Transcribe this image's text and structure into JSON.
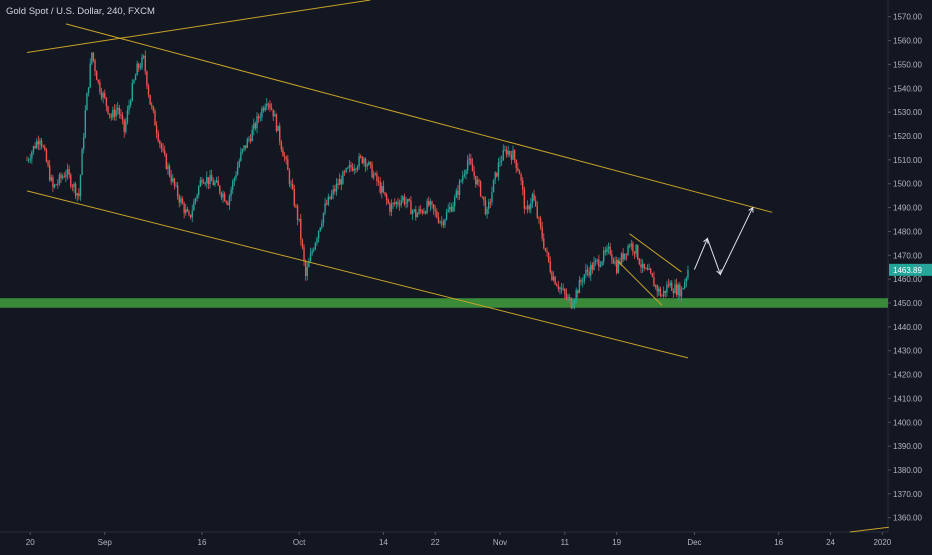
{
  "chart_data": {
    "type": "candlestick",
    "title": "Gold Spot / U.S. Dollar, 240, FXCM",
    "ylim": [
      1354,
      1577
    ],
    "x_range_days": [
      0,
      119
    ],
    "y_ticks": [
      1570,
      1560,
      1550,
      1540,
      1530,
      1520,
      1510,
      1500,
      1490,
      1480,
      1470,
      1460,
      1450,
      1440,
      1430,
      1420,
      1410,
      1400,
      1390,
      1380,
      1370,
      1360
    ],
    "y_tick_labels": [
      "1570.00",
      "1560.00",
      "1550.00",
      "1540.00",
      "1530.00",
      "1520.00",
      "1510.00",
      "1500.00",
      "1490.00",
      "1480.00",
      "1470.00",
      "1460.00",
      "1450.00",
      "1440.00",
      "1430.00",
      "1420.00",
      "1410.00",
      "1400.00",
      "1390.00",
      "1380.00",
      "1370.00",
      "1360.00"
    ],
    "x_ticks": [
      {
        "label": "20",
        "day": 0.5
      },
      {
        "label": "Sep",
        "day": 12
      },
      {
        "label": "16",
        "day": 27
      },
      {
        "label": "Oct",
        "day": 42
      },
      {
        "label": "14",
        "day": 55
      },
      {
        "label": "22",
        "day": 63
      },
      {
        "label": "Nov",
        "day": 73
      },
      {
        "label": "11",
        "day": 83
      },
      {
        "label": "19",
        "day": 91
      },
      {
        "label": "Dec",
        "day": 103
      },
      {
        "label": "16",
        "day": 116
      },
      {
        "label": "24",
        "day": 124
      },
      {
        "label": "2020",
        "day": 132
      }
    ],
    "price_label": "1463.89",
    "last_price": 1463.89,
    "support_zone": {
      "low": 1448,
      "high": 1452,
      "color": "#3a8a3a"
    },
    "colors": {
      "up": "#26a69a",
      "down": "#ef5350",
      "background": "#131722",
      "trendline": "#c9a227",
      "projection": "#e0e3eb",
      "price_label_bg": "#26a69a"
    },
    "trendlines": [
      {
        "name": "upper-channel",
        "points": [
          [
            6,
            1567
          ],
          [
            115,
            1488
          ]
        ]
      },
      {
        "name": "lower-channel",
        "points": [
          [
            0,
            1497
          ],
          [
            102,
            1427
          ]
        ]
      },
      {
        "name": "wedge-upper",
        "points": [
          [
            93,
            1479
          ],
          [
            101,
            1463
          ]
        ]
      },
      {
        "name": "wedge-lower",
        "points": [
          [
            91,
            1468
          ],
          [
            98,
            1449
          ]
        ]
      },
      {
        "name": "outer-upper-left",
        "points": [
          [
            0,
            1555
          ],
          [
            53,
            1577
          ]
        ]
      },
      {
        "name": "outer-lower-right",
        "points": [
          [
            127,
            1354
          ],
          [
            133,
            1356
          ]
        ]
      }
    ],
    "projection": [
      [
        103,
        1464
      ],
      [
        105,
        1477
      ],
      [
        107,
        1462
      ],
      [
        112,
        1490
      ]
    ],
    "ohlc_keypoints": [
      [
        0,
        1510
      ],
      [
        2,
        1520
      ],
      [
        4,
        1498
      ],
      [
        6,
        1505
      ],
      [
        8,
        1495
      ],
      [
        9,
        1530
      ],
      [
        10,
        1555
      ],
      [
        11,
        1542
      ],
      [
        12,
        1535
      ],
      [
        13,
        1528
      ],
      [
        14,
        1532
      ],
      [
        15,
        1522
      ],
      [
        16,
        1537
      ],
      [
        17,
        1548
      ],
      [
        18,
        1552
      ],
      [
        19,
        1534
      ],
      [
        21,
        1512
      ],
      [
        23,
        1497
      ],
      [
        25,
        1485
      ],
      [
        27,
        1503
      ],
      [
        29,
        1500
      ],
      [
        31,
        1493
      ],
      [
        33,
        1512
      ],
      [
        35,
        1523
      ],
      [
        37,
        1536
      ],
      [
        38,
        1530
      ],
      [
        40,
        1508
      ],
      [
        42,
        1483
      ],
      [
        43,
        1461
      ],
      [
        44,
        1472
      ],
      [
        46,
        1490
      ],
      [
        48,
        1500
      ],
      [
        50,
        1507
      ],
      [
        52,
        1511
      ],
      [
        54,
        1501
      ],
      [
        56,
        1490
      ],
      [
        58,
        1494
      ],
      [
        60,
        1487
      ],
      [
        62,
        1491
      ],
      [
        64,
        1484
      ],
      [
        66,
        1493
      ],
      [
        68,
        1510
      ],
      [
        70,
        1497
      ],
      [
        71,
        1487
      ],
      [
        72,
        1500
      ],
      [
        73,
        1510
      ],
      [
        74,
        1514
      ],
      [
        75,
        1512
      ],
      [
        76,
        1505
      ],
      [
        77,
        1487
      ],
      [
        78,
        1495
      ],
      [
        80,
        1472
      ],
      [
        81,
        1462
      ],
      [
        83,
        1453
      ],
      [
        84,
        1450
      ],
      [
        86,
        1462
      ],
      [
        88,
        1467
      ],
      [
        90,
        1472
      ],
      [
        91,
        1465
      ],
      [
        93,
        1475
      ],
      [
        94,
        1472
      ],
      [
        95,
        1464
      ],
      [
        96,
        1462
      ],
      [
        97,
        1457
      ],
      [
        98,
        1453
      ],
      [
        99,
        1458
      ],
      [
        100,
        1456
      ],
      [
        101,
        1455
      ],
      [
        102,
        1463.89
      ]
    ]
  }
}
